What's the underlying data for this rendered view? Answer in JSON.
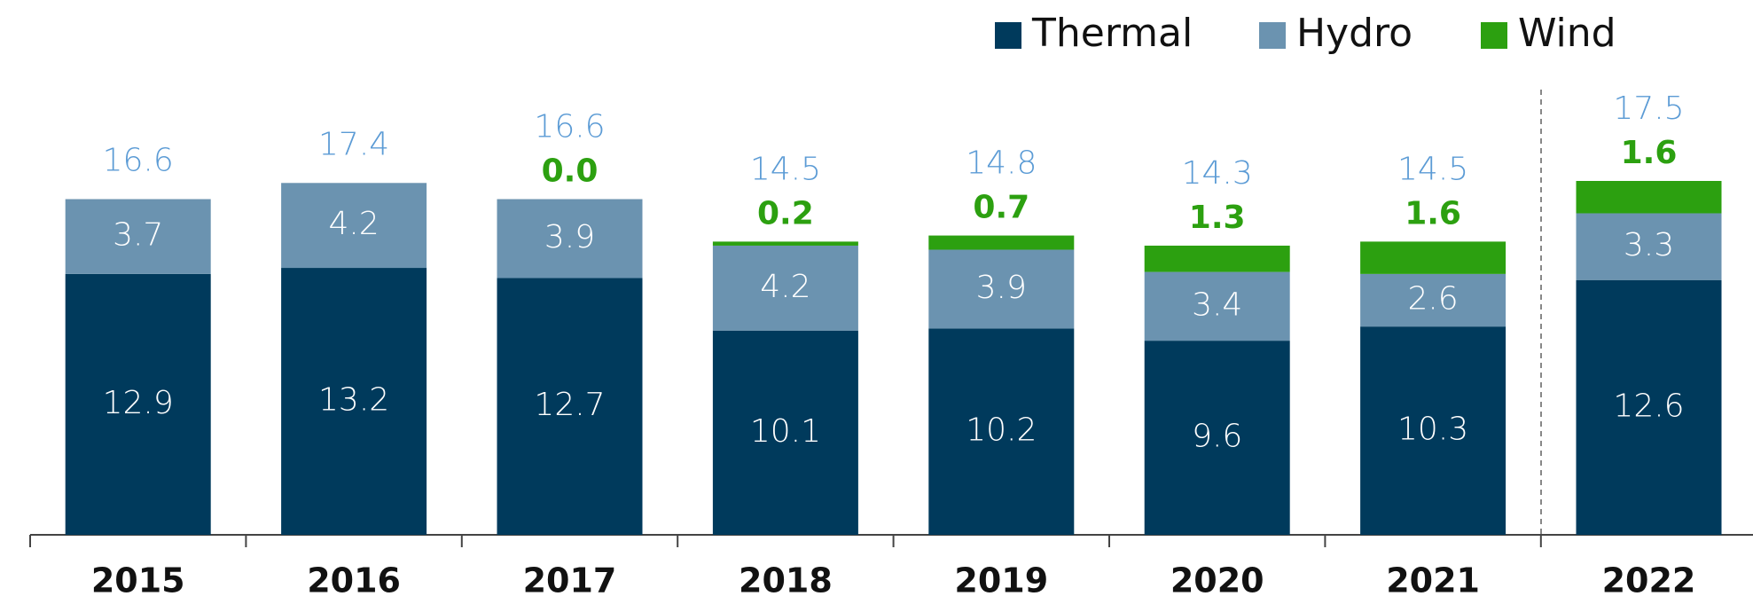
{
  "chart_data": {
    "type": "stacked_bar",
    "categories": [
      "2015",
      "2016",
      "2017",
      "2018",
      "2019",
      "2020",
      "2021",
      "2022"
    ],
    "series": [
      {
        "name": "Thermal",
        "color": "#003a5c",
        "values": [
          12.9,
          13.2,
          12.7,
          10.1,
          10.2,
          9.6,
          10.3,
          12.6
        ]
      },
      {
        "name": "Hydro",
        "color": "#6b93b0",
        "values": [
          3.7,
          4.2,
          3.9,
          4.2,
          3.9,
          3.4,
          2.6,
          3.3
        ]
      },
      {
        "name": "Wind",
        "color": "#2ca010",
        "values": [
          null,
          null,
          0,
          0.2,
          0.7,
          1.3,
          1.6,
          1.6
        ],
        "value_labels": [
          null,
          null,
          "0.0",
          "0.2",
          "0.7",
          "1.3",
          "1.6",
          "1.6"
        ]
      }
    ],
    "totals": [
      16.6,
      17.4,
      16.6,
      14.5,
      14.8,
      14.3,
      14.5,
      17.5
    ]
  }
}
